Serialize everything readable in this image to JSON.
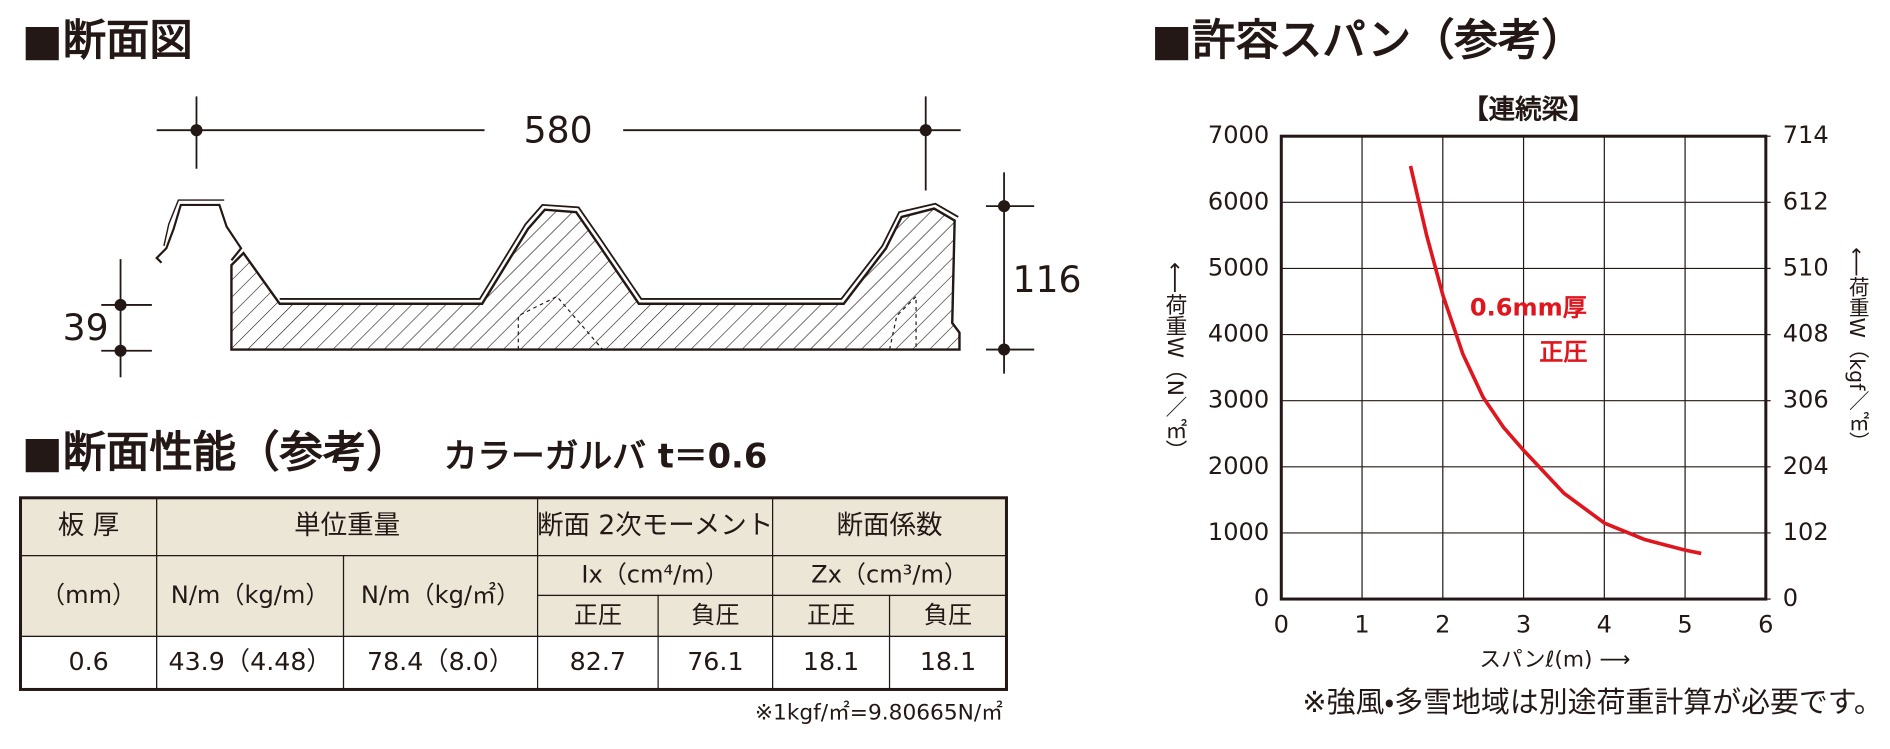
{
  "section_view": {
    "heading": "■断面図",
    "width_label": "580",
    "height_label": "116",
    "rib_label": "39"
  },
  "properties": {
    "heading": "■断面性能（参考）",
    "subtitle": "カラーガルバ t＝0.6"
  },
  "table": {
    "header": [
      [
        "板 厚",
        "単位重量",
        "断面 2次モーメント",
        "断面係数"
      ],
      [
        "（mm）",
        "N/m（kg/m）",
        "N/m（kg/㎡）",
        "Ix（cm⁴/m）",
        "Zx（cm³/m）"
      ],
      [
        "正圧",
        "負圧",
        "正圧",
        "負圧"
      ]
    ],
    "rows": [
      [
        "0.6",
        "43.9（4.48）",
        "78.4（8.0）",
        "82.7",
        "76.1",
        "18.1",
        "18.1"
      ]
    ],
    "note": "※1kgf/㎡=9.80665N/㎡"
  },
  "span_section": {
    "heading": "■許容スパン（参考）",
    "note": "※強風・多雪地域は別途荷重計算が必要です。"
  },
  "chart_data": {
    "type": "line",
    "title": "【連続梁】",
    "xlabel": "スパンℓ(m) ⟶",
    "ylabel": "⟵荷重W（N／㎡）",
    "y2label": "⟵荷重W（kgf／㎡）",
    "annotation": "正圧",
    "x": [
      1.6,
      1.8,
      2,
      2.25,
      2.5,
      2.75,
      3,
      3.5,
      4,
      4.5,
      5,
      5.2
    ],
    "series": [
      {
        "name": "0.6mm厚",
        "color": "#e0161e",
        "values": [
          6550,
          5500,
          4600,
          3700,
          3050,
          2600,
          2250,
          1600,
          1150,
          900,
          740,
          690
        ]
      }
    ],
    "xlim": [
      0,
      6
    ],
    "xticks": [
      0,
      1,
      2,
      3,
      4,
      5,
      6
    ],
    "ylim": [
      0,
      7000
    ],
    "yticks": [
      0,
      1000,
      2000,
      3000,
      4000,
      5000,
      6000,
      7000
    ],
    "y2lim": [
      0,
      714
    ],
    "y2ticks": [
      0,
      102,
      204,
      306,
      408,
      510,
      612,
      714
    ],
    "grid": true
  }
}
